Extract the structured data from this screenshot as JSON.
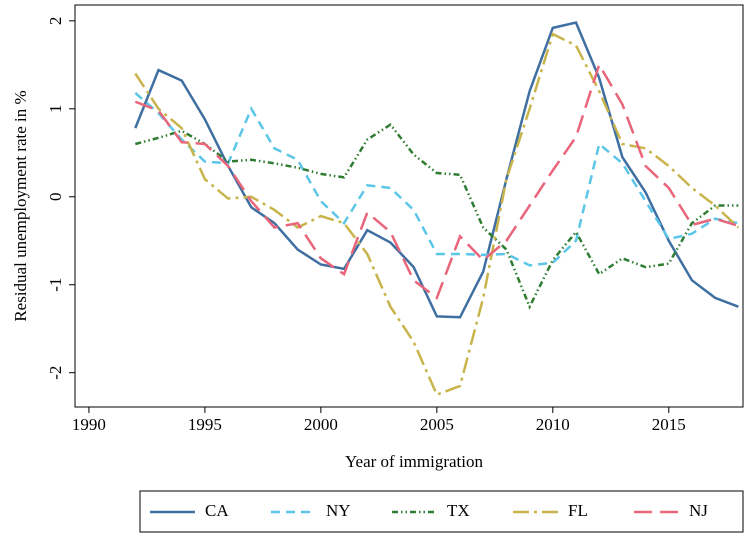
{
  "chart_data": {
    "type": "line",
    "xlabel": "Year of immigration",
    "ylabel": "Residual unemployment rate in %",
    "x": [
      1992,
      1993,
      1994,
      1995,
      1996,
      1997,
      1998,
      1999,
      2000,
      2001,
      2002,
      2003,
      2004,
      2005,
      2006,
      2007,
      2008,
      2009,
      2010,
      2011,
      2012,
      2013,
      2014,
      2015,
      2016,
      2017,
      2018
    ],
    "series": [
      {
        "name": "CA",
        "color": "#3f6fa1",
        "linestyle": "solid",
        "values": [
          0.78,
          1.44,
          1.32,
          0.88,
          0.35,
          -0.12,
          -0.3,
          -0.6,
          -0.77,
          -0.82,
          -0.38,
          -0.52,
          -0.8,
          -1.36,
          -1.37,
          -0.85,
          0.2,
          1.2,
          1.92,
          1.98,
          1.35,
          0.45,
          0.05,
          -0.5,
          -0.95,
          -1.15,
          -1.25
        ]
      },
      {
        "name": "NY",
        "color": "#5bc6e8",
        "linestyle": "dashed",
        "values": [
          1.18,
          0.95,
          0.65,
          0.4,
          0.38,
          1.0,
          0.55,
          0.42,
          -0.05,
          -0.3,
          0.13,
          0.1,
          -0.15,
          -0.65,
          -0.65,
          -0.66,
          -0.65,
          -0.78,
          -0.75,
          -0.5,
          0.6,
          0.38,
          -0.05,
          -0.48,
          -0.42,
          -0.25,
          -0.3
        ]
      },
      {
        "name": "TX",
        "color": "#2e7d32",
        "linestyle": "dashdotdot",
        "values": [
          0.6,
          0.67,
          0.75,
          0.6,
          0.4,
          0.42,
          0.38,
          0.33,
          0.26,
          0.22,
          0.65,
          0.82,
          0.48,
          0.27,
          0.25,
          -0.35,
          -0.6,
          -1.25,
          -0.72,
          -0.4,
          -0.88,
          -0.7,
          -0.8,
          -0.76,
          -0.3,
          -0.1,
          -0.1
        ]
      },
      {
        "name": "FL",
        "color": "#c9b44c",
        "linestyle": "longdashdot",
        "values": [
          1.4,
          1.0,
          0.78,
          0.2,
          -0.02,
          0.0,
          -0.15,
          -0.35,
          -0.22,
          -0.3,
          -0.65,
          -1.25,
          -1.65,
          -2.25,
          -2.15,
          -1.15,
          0.2,
          1.0,
          1.85,
          1.72,
          1.2,
          0.6,
          0.55,
          0.35,
          0.1,
          -0.1,
          -0.35
        ]
      },
      {
        "name": "NJ",
        "color": "#e8657a",
        "linestyle": "longdash",
        "values": [
          1.08,
          0.98,
          0.62,
          0.6,
          0.35,
          -0.05,
          -0.35,
          -0.3,
          -0.7,
          -0.88,
          -0.18,
          -0.4,
          -0.95,
          -1.15,
          -0.45,
          -0.72,
          -0.5,
          -0.1,
          0.3,
          0.68,
          1.5,
          1.05,
          0.35,
          0.1,
          -0.32,
          -0.25,
          -0.33
        ]
      }
    ],
    "xlim": [
      1989.4,
      2018.2
    ],
    "xticks": [
      1990,
      1995,
      2000,
      2005,
      2010,
      2015
    ],
    "ylim": [
      -2.39,
      2.18
    ],
    "yticks": [
      -2,
      -1,
      0,
      1,
      2
    ],
    "grid": false,
    "legend": "bottom"
  }
}
